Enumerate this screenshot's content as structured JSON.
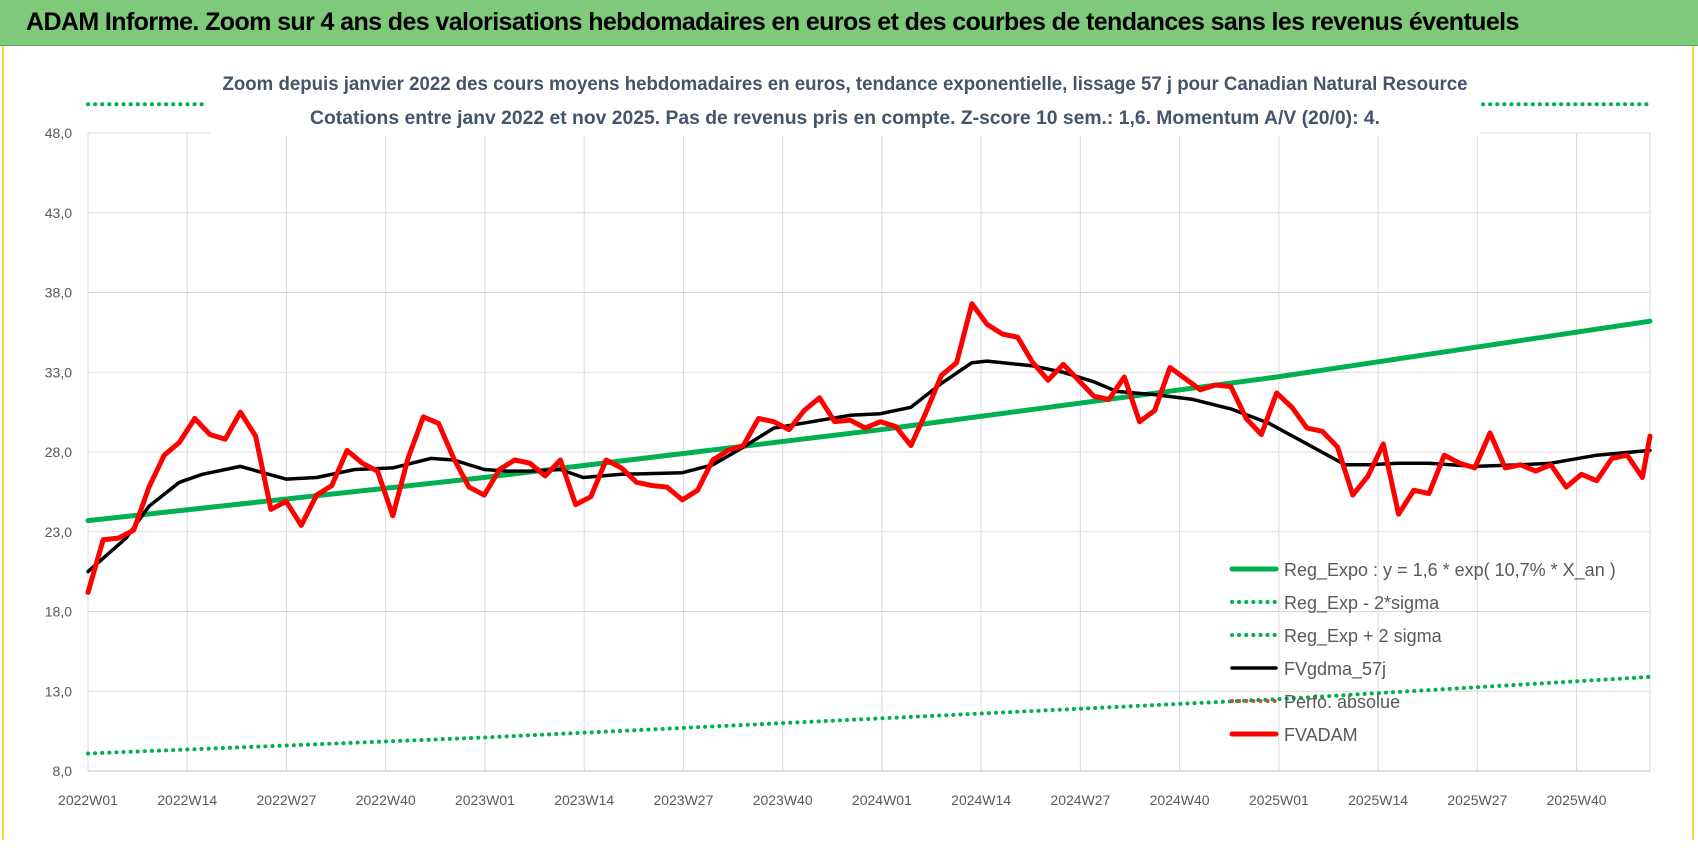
{
  "banner": {
    "title": "ADAM Informe. Zoom sur 4 ans des valorisations hebdomadaires en euros et des courbes de tendances sans les revenus éventuels"
  },
  "chart_data": {
    "type": "line",
    "title": "Zoom depuis janvier 2022 des cours moyens hebdomadaires en euros, tendance exponentielle, lissage 57 j pour Canadian Natural Resource",
    "subtitle": "Cotations entre janv 2022 et nov 2025. Pas de revenus pris en compte. Z-score 10 sem.: 1,6. Momentum A/V (20/0): 4.",
    "xlabel": "",
    "ylabel": "",
    "ylim": [
      8.0,
      48.0
    ],
    "yticks": [
      "8,0",
      "13,0",
      "18,0",
      "23,0",
      "28,0",
      "33,0",
      "38,0",
      "43,0",
      "48,0"
    ],
    "xticks": [
      "2022W01",
      "2022W14",
      "2022W27",
      "2022W40",
      "2023W01",
      "2023W14",
      "2023W27",
      "2023W40",
      "2024W01",
      "2024W14",
      "2024W27",
      "2024W40",
      "2025W01",
      "2025W14",
      "2025W27",
      "2025W40"
    ],
    "grid": true,
    "legend_position": "bottom-right",
    "series": [
      {
        "name": "Reg_Expo : y = 1,6 * exp( 10,7% * X_an )",
        "color": "#00b050",
        "style": "solid-thick",
        "x": [
          0,
          52,
          104,
          156,
          205
        ],
        "values": [
          23.7,
          26.4,
          29.4,
          32.7,
          36.2
        ]
      },
      {
        "name": "Reg_Exp - 2*sigma",
        "color": "#00b050",
        "style": "dotted",
        "x": [
          0,
          52,
          104,
          156,
          205
        ],
        "values": [
          9.1,
          10.1,
          11.3,
          12.5,
          13.9
        ]
      },
      {
        "name": "Reg_Exp + 2 sigma",
        "color": "#00b050",
        "style": "dotted",
        "x": [
          0,
          205
        ],
        "values": [
          49.8,
          49.8
        ]
      },
      {
        "name": "FVgdma_57j",
        "color": "#000000",
        "style": "solid",
        "x": [
          0,
          5,
          8,
          12,
          15,
          20,
          26,
          30,
          35,
          40,
          45,
          48,
          52,
          55,
          58,
          62,
          65,
          70,
          78,
          82,
          86,
          90,
          95,
          100,
          104,
          108,
          112,
          116,
          118,
          122,
          124,
          128,
          132,
          135,
          140,
          145,
          150,
          155,
          160,
          165,
          168,
          172,
          176,
          182,
          188,
          192,
          198,
          205
        ],
        "values": [
          20.5,
          22.6,
          24.6,
          26.1,
          26.6,
          27.1,
          26.3,
          26.4,
          26.9,
          27.0,
          27.6,
          27.5,
          26.9,
          26.8,
          26.8,
          26.9,
          26.4,
          26.6,
          26.7,
          27.2,
          28.3,
          29.5,
          29.9,
          30.3,
          30.4,
          30.8,
          32.3,
          33.6,
          33.7,
          33.5,
          33.4,
          33.0,
          32.4,
          31.8,
          31.6,
          31.3,
          30.7,
          29.8,
          28.5,
          27.2,
          27.2,
          27.3,
          27.3,
          27.1,
          27.2,
          27.3,
          27.8,
          28.1
        ]
      },
      {
        "name": "Perfo. absolue",
        "color": "#c0504d",
        "style": "dotted",
        "x": [],
        "values": []
      },
      {
        "name": "FVADAM",
        "color": "#ff0000",
        "style": "solid-thick",
        "x": [
          0,
          2,
          4,
          6,
          8,
          10,
          12,
          14,
          16,
          18,
          20,
          22,
          24,
          26,
          28,
          30,
          32,
          34,
          36,
          38,
          40,
          42,
          44,
          46,
          48,
          50,
          52,
          54,
          56,
          58,
          60,
          62,
          64,
          66,
          68,
          70,
          72,
          74,
          76,
          78,
          80,
          82,
          84,
          86,
          88,
          90,
          92,
          94,
          96,
          98,
          100,
          102,
          104,
          106,
          108,
          110,
          112,
          114,
          116,
          118,
          120,
          122,
          124,
          126,
          128,
          130,
          132,
          134,
          136,
          138,
          140,
          142,
          144,
          146,
          148,
          150,
          152,
          154,
          156,
          158,
          160,
          162,
          164,
          166,
          168,
          170,
          172,
          174,
          176,
          178,
          180,
          182,
          184,
          186,
          188,
          190,
          192,
          194,
          196,
          198,
          200,
          202,
          204,
          205
        ],
        "values": [
          19.2,
          22.5,
          22.6,
          23.1,
          25.8,
          27.8,
          28.6,
          30.1,
          29.1,
          28.8,
          30.5,
          29.0,
          24.4,
          24.9,
          23.4,
          25.3,
          25.9,
          28.1,
          27.3,
          26.8,
          24.0,
          27.6,
          30.2,
          29.8,
          27.6,
          25.8,
          25.3,
          26.9,
          27.5,
          27.3,
          26.5,
          27.5,
          24.7,
          25.2,
          27.5,
          27.0,
          26.1,
          25.9,
          25.8,
          25.0,
          25.6,
          27.5,
          28.1,
          28.4,
          30.1,
          29.9,
          29.4,
          30.6,
          31.4,
          29.9,
          30.0,
          29.5,
          29.9,
          29.6,
          28.4,
          30.5,
          32.8,
          33.6,
          37.3,
          36.0,
          35.4,
          35.2,
          33.6,
          32.5,
          33.5,
          32.5,
          31.5,
          31.3,
          32.7,
          29.9,
          30.6,
          33.3,
          32.6,
          31.9,
          32.2,
          32.1,
          30.1,
          29.1,
          31.7,
          30.8,
          29.5,
          29.3,
          28.3,
          25.3,
          26.5,
          28.5,
          24.1,
          25.6,
          25.4,
          27.8,
          27.3,
          27.0,
          29.2,
          27.0,
          27.2,
          26.8,
          27.2,
          25.8,
          26.6,
          26.2,
          27.6,
          27.8,
          26.4,
          29.0
        ]
      }
    ]
  }
}
